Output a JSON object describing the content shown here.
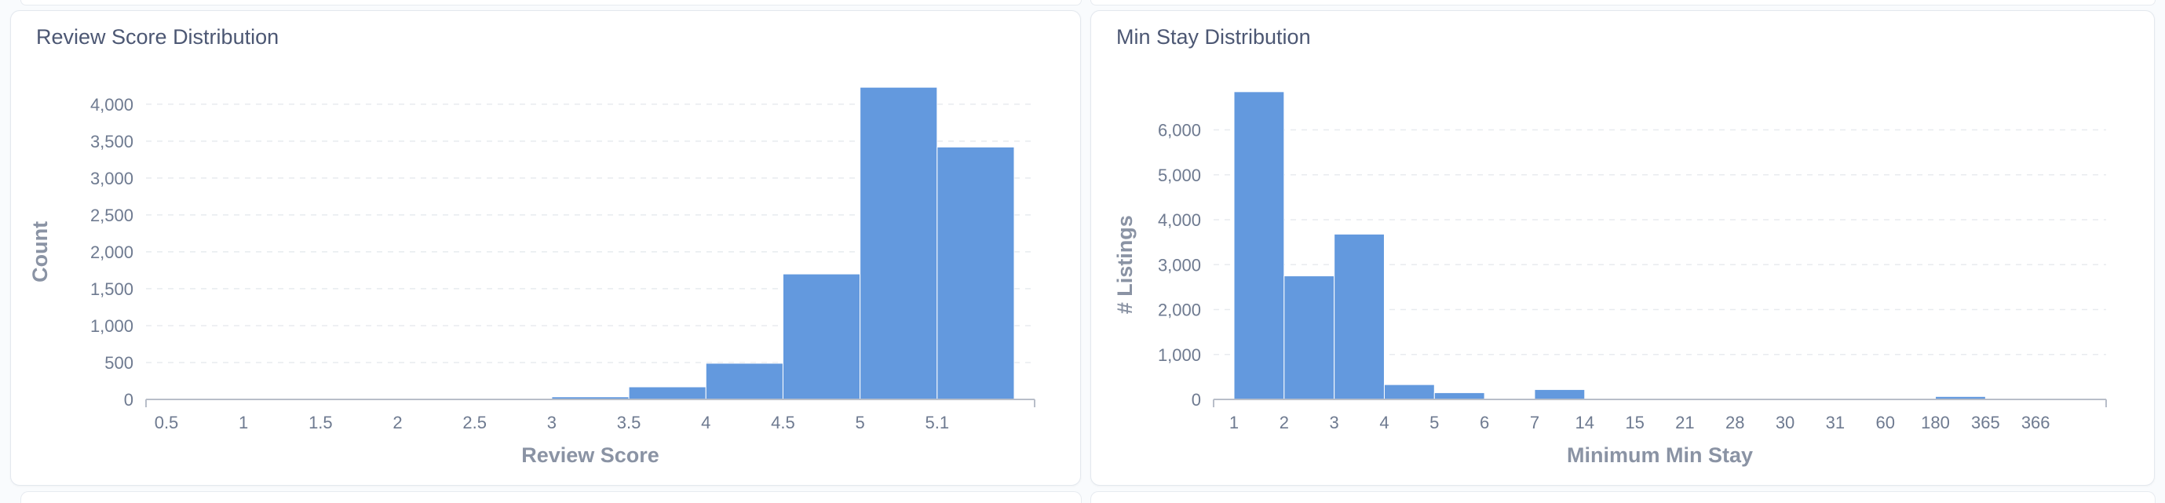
{
  "colors": {
    "bar": "#6399de",
    "grid": "#e8ebef",
    "axis": "#b8bec9",
    "text": "#6e7a90",
    "title": "#4c5773"
  },
  "chart_data": [
    {
      "type": "bar",
      "title": "Review Score Distribution",
      "xlabel": "Review Score",
      "ylabel": "Count",
      "grid": true,
      "ylim": [
        0,
        4200
      ],
      "yticks": [
        0,
        500,
        1000,
        1500,
        2000,
        2500,
        3000,
        3500,
        4000
      ],
      "ytick_labels": [
        "0",
        "500",
        "1,000",
        "1,500",
        "2,000",
        "2,500",
        "3,000",
        "3,500",
        "4,000"
      ],
      "categories": [
        "0.5",
        "1",
        "1.5",
        "2",
        "2.5",
        "3",
        "3.5",
        "4",
        "4.5",
        "5",
        "5.1"
      ],
      "values": [
        5,
        5,
        5,
        5,
        5,
        35,
        170,
        490,
        1700,
        4230,
        3420
      ]
    },
    {
      "type": "bar",
      "title": "Min Stay Distribution",
      "xlabel": "Minimum Min Stay",
      "ylabel": "# Listings",
      "grid": true,
      "ylim": [
        0,
        6900
      ],
      "yticks": [
        0,
        1000,
        2000,
        3000,
        4000,
        5000,
        6000
      ],
      "ytick_labels": [
        "0",
        "1,000",
        "2,000",
        "3,000",
        "4,000",
        "5,000",
        "6,000"
      ],
      "categories": [
        "1",
        "2",
        "3",
        "4",
        "5",
        "6",
        "7",
        "14",
        "15",
        "21",
        "28",
        "30",
        "31",
        "60",
        "180",
        "365",
        "366"
      ],
      "values": [
        6850,
        2750,
        3680,
        330,
        150,
        20,
        220,
        10,
        5,
        5,
        5,
        5,
        5,
        5,
        65,
        5,
        5
      ]
    }
  ]
}
